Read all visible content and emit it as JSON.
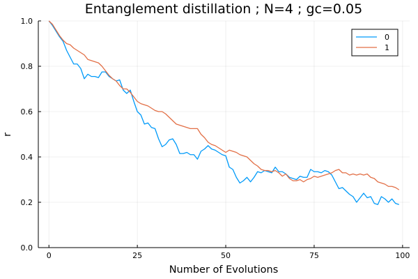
{
  "chart_data": {
    "type": "line",
    "title": "Entanglement distillation ; N=4 ; gc=0.05",
    "xlabel": "Number of Evolutions",
    "ylabel": "r",
    "xlim": [
      -3,
      102
    ],
    "ylim": [
      0,
      1
    ],
    "xticks": [
      0,
      25,
      50,
      75,
      100
    ],
    "yticks": [
      0.0,
      0.2,
      0.4,
      0.6,
      0.8,
      1.0
    ],
    "xtick_labels": [
      "0",
      "25",
      "50",
      "75",
      "100"
    ],
    "ytick_labels": [
      "0.0",
      "0.2",
      "0.4",
      "0.6",
      "0.8",
      "1.0"
    ],
    "grid": true,
    "legend_position": "top-right",
    "series": [
      {
        "name": "0",
        "color": "#009af9",
        "x": [
          0,
          1,
          2,
          3,
          4,
          5,
          6,
          7,
          8,
          9,
          10,
          11,
          12,
          13,
          14,
          15,
          16,
          17,
          18,
          19,
          20,
          21,
          22,
          23,
          24,
          25,
          26,
          27,
          28,
          29,
          30,
          31,
          32,
          33,
          34,
          35,
          36,
          37,
          38,
          39,
          40,
          41,
          42,
          43,
          44,
          45,
          46,
          47,
          48,
          49,
          50,
          51,
          52,
          53,
          54,
          55,
          56,
          57,
          58,
          59,
          60,
          61,
          62,
          63,
          64,
          65,
          66,
          67,
          68,
          69,
          70,
          71,
          72,
          73,
          74,
          75,
          76,
          77,
          78,
          79,
          80,
          81,
          82,
          83,
          84,
          85,
          86,
          87,
          88,
          89,
          90,
          91,
          92,
          93,
          94,
          95,
          96,
          97,
          98,
          99
        ],
        "values": [
          1.0,
          0.98,
          0.955,
          0.93,
          0.91,
          0.87,
          0.84,
          0.81,
          0.81,
          0.79,
          0.745,
          0.765,
          0.755,
          0.755,
          0.75,
          0.775,
          0.775,
          0.755,
          0.745,
          0.735,
          0.74,
          0.695,
          0.68,
          0.695,
          0.645,
          0.6,
          0.585,
          0.545,
          0.55,
          0.53,
          0.525,
          0.48,
          0.445,
          0.455,
          0.475,
          0.48,
          0.455,
          0.415,
          0.415,
          0.42,
          0.41,
          0.41,
          0.39,
          0.425,
          0.435,
          0.45,
          0.435,
          0.43,
          0.42,
          0.41,
          0.405,
          0.355,
          0.345,
          0.31,
          0.285,
          0.295,
          0.31,
          0.29,
          0.31,
          0.335,
          0.33,
          0.34,
          0.335,
          0.33,
          0.355,
          0.335,
          0.335,
          0.325,
          0.31,
          0.305,
          0.3,
          0.315,
          0.31,
          0.31,
          0.345,
          0.335,
          0.335,
          0.33,
          0.34,
          0.335,
          0.32,
          0.29,
          0.26,
          0.265,
          0.25,
          0.235,
          0.225,
          0.2,
          0.22,
          0.24,
          0.22,
          0.225,
          0.195,
          0.19,
          0.225,
          0.215,
          0.2,
          0.215,
          0.195,
          0.19
        ]
      },
      {
        "name": "1",
        "color": "#e26f46",
        "x": [
          0,
          1,
          2,
          3,
          4,
          5,
          6,
          7,
          8,
          9,
          10,
          11,
          12,
          13,
          14,
          15,
          16,
          17,
          18,
          19,
          20,
          21,
          22,
          23,
          24,
          25,
          26,
          27,
          28,
          29,
          30,
          31,
          32,
          33,
          34,
          35,
          36,
          37,
          38,
          39,
          40,
          41,
          42,
          43,
          44,
          45,
          46,
          47,
          48,
          49,
          50,
          51,
          52,
          53,
          54,
          55,
          56,
          57,
          58,
          59,
          60,
          61,
          62,
          63,
          64,
          65,
          66,
          67,
          68,
          69,
          70,
          71,
          72,
          73,
          74,
          75,
          76,
          77,
          78,
          79,
          80,
          81,
          82,
          83,
          84,
          85,
          86,
          87,
          88,
          89,
          90,
          91,
          92,
          93,
          94,
          95,
          96,
          97,
          98,
          99
        ],
        "values": [
          1.0,
          0.985,
          0.96,
          0.935,
          0.915,
          0.9,
          0.895,
          0.88,
          0.87,
          0.86,
          0.85,
          0.83,
          0.825,
          0.82,
          0.815,
          0.8,
          0.78,
          0.76,
          0.745,
          0.735,
          0.715,
          0.7,
          0.7,
          0.685,
          0.665,
          0.645,
          0.635,
          0.63,
          0.625,
          0.615,
          0.605,
          0.6,
          0.6,
          0.59,
          0.575,
          0.56,
          0.545,
          0.54,
          0.535,
          0.53,
          0.525,
          0.525,
          0.525,
          0.5,
          0.485,
          0.465,
          0.455,
          0.45,
          0.44,
          0.43,
          0.42,
          0.43,
          0.425,
          0.42,
          0.41,
          0.405,
          0.4,
          0.385,
          0.37,
          0.36,
          0.345,
          0.34,
          0.34,
          0.335,
          0.34,
          0.33,
          0.315,
          0.325,
          0.305,
          0.295,
          0.295,
          0.3,
          0.29,
          0.3,
          0.305,
          0.315,
          0.31,
          0.315,
          0.32,
          0.325,
          0.33,
          0.34,
          0.345,
          0.33,
          0.33,
          0.32,
          0.325,
          0.32,
          0.325,
          0.32,
          0.325,
          0.31,
          0.305,
          0.29,
          0.285,
          0.28,
          0.27,
          0.27,
          0.265,
          0.255
        ]
      }
    ]
  }
}
